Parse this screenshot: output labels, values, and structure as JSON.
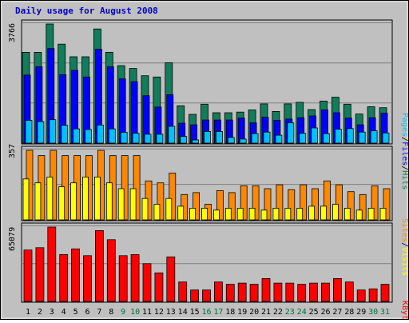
{
  "title": "Daily usage for August 2008",
  "colors": {
    "background": "#c0c0c0",
    "title": "#0000cc",
    "hits": "#127c5b",
    "files": "#0000ff",
    "pages": "#00c0ff",
    "visits": "#ffff00",
    "sites": "#ff8800",
    "kbytes": "#ff0000",
    "weekday_label": "#000000",
    "weekend_label": "#007040"
  },
  "chart_data": [
    {
      "type": "bar",
      "categories": [
        "1",
        "2",
        "3",
        "4",
        "5",
        "6",
        "7",
        "8",
        "9",
        "10",
        "11",
        "12",
        "13",
        "14",
        "15",
        "16",
        "17",
        "18",
        "19",
        "20",
        "21",
        "22",
        "23",
        "24",
        "25",
        "26",
        "27",
        "28",
        "29",
        "30",
        "31"
      ],
      "weekend_days": [
        "9",
        "10",
        "16",
        "17",
        "23",
        "24",
        "30",
        "31"
      ],
      "axis_max_label": "3766",
      "ylim": [
        0,
        3766
      ],
      "legend_labels": [
        "Pages",
        "Files",
        "Hits"
      ],
      "series": [
        {
          "name": "Hits",
          "values": [
            2870,
            2870,
            3766,
            3130,
            2730,
            2730,
            3610,
            2870,
            2450,
            2360,
            2130,
            2090,
            2540,
            1180,
            910,
            1230,
            960,
            960,
            980,
            1050,
            1240,
            1000,
            1240,
            1290,
            1060,
            1330,
            1450,
            1230,
            920,
            1150,
            1120
          ]
        },
        {
          "name": "Files",
          "values": [
            2150,
            2410,
            2990,
            2160,
            2300,
            2090,
            2970,
            2410,
            2030,
            1940,
            1500,
            1140,
            1530,
            630,
            580,
            730,
            730,
            730,
            790,
            640,
            820,
            720,
            760,
            800,
            860,
            1050,
            960,
            790,
            580,
            800,
            950
          ]
        },
        {
          "name": "Pages",
          "values": [
            720,
            680,
            740,
            560,
            450,
            430,
            570,
            450,
            340,
            310,
            280,
            280,
            530,
            210,
            100,
            370,
            370,
            180,
            130,
            300,
            350,
            250,
            640,
            310,
            480,
            300,
            440,
            460,
            350,
            390,
            320
          ]
        }
      ]
    },
    {
      "type": "bar",
      "categories": [
        "1",
        "2",
        "3",
        "4",
        "5",
        "6",
        "7",
        "8",
        "9",
        "10",
        "11",
        "12",
        "13",
        "14",
        "15",
        "16",
        "17",
        "18",
        "19",
        "20",
        "21",
        "22",
        "23",
        "24",
        "25",
        "26",
        "27",
        "28",
        "29",
        "30",
        "31"
      ],
      "axis_max_label": "357",
      "ylim": [
        0,
        357
      ],
      "legend_labels": [
        "Sites",
        "Visits"
      ],
      "series": [
        {
          "name": "Sites",
          "values": [
            357,
            330,
            357,
            330,
            330,
            330,
            357,
            330,
            330,
            330,
            200,
            190,
            240,
            130,
            140,
            80,
            150,
            140,
            175,
            175,
            160,
            180,
            155,
            180,
            160,
            200,
            180,
            145,
            130,
            175,
            160
          ]
        },
        {
          "name": "Visits",
          "values": [
            210,
            190,
            220,
            170,
            190,
            220,
            220,
            190,
            160,
            160,
            110,
            80,
            110,
            70,
            60,
            60,
            50,
            60,
            60,
            60,
            50,
            60,
            60,
            60,
            70,
            70,
            80,
            60,
            50,
            60,
            60
          ]
        }
      ]
    },
    {
      "type": "bar",
      "categories": [
        "1",
        "2",
        "3",
        "4",
        "5",
        "6",
        "7",
        "8",
        "9",
        "10",
        "11",
        "12",
        "13",
        "14",
        "15",
        "16",
        "17",
        "18",
        "19",
        "20",
        "21",
        "22",
        "23",
        "24",
        "25",
        "26",
        "27",
        "28",
        "29",
        "30",
        "31"
      ],
      "axis_max_label": "65079",
      "ylim": [
        0,
        65079
      ],
      "legend_labels": [
        "KBytes"
      ],
      "series": [
        {
          "name": "KBytes",
          "values": [
            45000,
            47000,
            65079,
            41000,
            46000,
            40000,
            62000,
            54000,
            40000,
            41000,
            33000,
            25000,
            39000,
            17000,
            10000,
            10000,
            17000,
            15000,
            16000,
            15000,
            20000,
            16000,
            16000,
            15000,
            16000,
            16000,
            20000,
            17000,
            10000,
            11000,
            15000
          ]
        }
      ]
    }
  ]
}
